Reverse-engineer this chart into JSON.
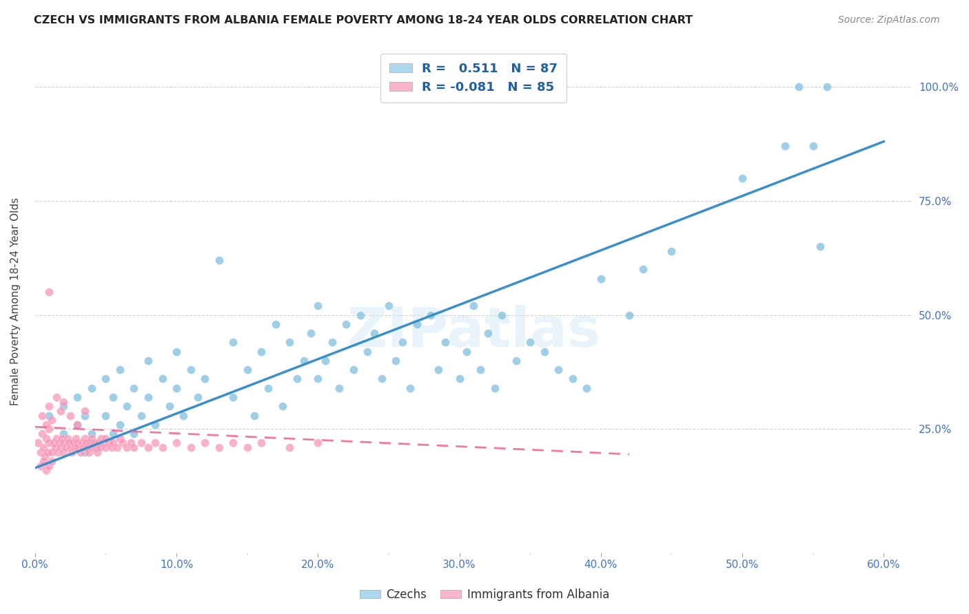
{
  "title": "CZECH VS IMMIGRANTS FROM ALBANIA FEMALE POVERTY AMONG 18-24 YEAR OLDS CORRELATION CHART",
  "source": "Source: ZipAtlas.com",
  "ylabel": "Female Poverty Among 18-24 Year Olds",
  "xlim": [
    0.0,
    0.62
  ],
  "ylim": [
    -0.02,
    1.08
  ],
  "xtick_labels": [
    "0.0%",
    "",
    "10.0%",
    "",
    "20.0%",
    "",
    "30.0%",
    "",
    "40.0%",
    "",
    "50.0%",
    "",
    "60.0%"
  ],
  "xtick_values": [
    0.0,
    0.05,
    0.1,
    0.15,
    0.2,
    0.25,
    0.3,
    0.35,
    0.4,
    0.45,
    0.5,
    0.55,
    0.6
  ],
  "ytick_labels": [
    "25.0%",
    "50.0%",
    "75.0%",
    "100.0%"
  ],
  "ytick_values": [
    0.25,
    0.5,
    0.75,
    1.0
  ],
  "blue_color": "#7fbfdf",
  "pink_color": "#f896b8",
  "blue_line_color": "#3a8fc8",
  "pink_line_color": "#f06090",
  "legend_blue_color": "#add8f0",
  "legend_pink_color": "#fbb4ce",
  "R_blue": 0.511,
  "N_blue": 87,
  "R_pink": -0.081,
  "N_pink": 85,
  "watermark_text": "ZIPatlas",
  "blue_trend_x": [
    0.0,
    0.6
  ],
  "blue_trend_y": [
    0.165,
    0.88
  ],
  "pink_trend_x": [
    0.0,
    0.42
  ],
  "pink_trend_y": [
    0.255,
    0.195
  ],
  "blue_scatter_x": [
    0.01,
    0.02,
    0.02,
    0.025,
    0.03,
    0.03,
    0.035,
    0.035,
    0.04,
    0.04,
    0.045,
    0.05,
    0.05,
    0.055,
    0.055,
    0.06,
    0.06,
    0.065,
    0.07,
    0.07,
    0.075,
    0.08,
    0.08,
    0.085,
    0.09,
    0.095,
    0.1,
    0.1,
    0.105,
    0.11,
    0.115,
    0.12,
    0.13,
    0.14,
    0.14,
    0.15,
    0.155,
    0.16,
    0.165,
    0.17,
    0.175,
    0.18,
    0.185,
    0.19,
    0.195,
    0.2,
    0.2,
    0.205,
    0.21,
    0.215,
    0.22,
    0.225,
    0.23,
    0.235,
    0.24,
    0.245,
    0.25,
    0.255,
    0.26,
    0.265,
    0.27,
    0.28,
    0.285,
    0.29,
    0.3,
    0.305,
    0.31,
    0.315,
    0.32,
    0.325,
    0.33,
    0.34,
    0.35,
    0.36,
    0.37,
    0.38,
    0.39,
    0.4,
    0.42,
    0.43,
    0.45,
    0.5,
    0.53,
    0.54,
    0.55,
    0.555,
    0.56
  ],
  "blue_scatter_y": [
    0.28,
    0.24,
    0.3,
    0.22,
    0.26,
    0.32,
    0.2,
    0.28,
    0.24,
    0.34,
    0.22,
    0.28,
    0.36,
    0.24,
    0.32,
    0.26,
    0.38,
    0.3,
    0.24,
    0.34,
    0.28,
    0.32,
    0.4,
    0.26,
    0.36,
    0.3,
    0.34,
    0.42,
    0.28,
    0.38,
    0.32,
    0.36,
    0.62,
    0.32,
    0.44,
    0.38,
    0.28,
    0.42,
    0.34,
    0.48,
    0.3,
    0.44,
    0.36,
    0.4,
    0.46,
    0.36,
    0.52,
    0.4,
    0.44,
    0.34,
    0.48,
    0.38,
    0.5,
    0.42,
    0.46,
    0.36,
    0.52,
    0.4,
    0.44,
    0.34,
    0.48,
    0.5,
    0.38,
    0.44,
    0.36,
    0.42,
    0.52,
    0.38,
    0.46,
    0.34,
    0.5,
    0.4,
    0.44,
    0.42,
    0.38,
    0.36,
    0.34,
    0.58,
    0.5,
    0.6,
    0.64,
    0.8,
    0.87,
    1.0,
    0.87,
    0.65,
    1.0
  ],
  "pink_scatter_x": [
    0.002,
    0.004,
    0.005,
    0.006,
    0.007,
    0.008,
    0.009,
    0.01,
    0.01,
    0.012,
    0.013,
    0.014,
    0.015,
    0.016,
    0.017,
    0.018,
    0.019,
    0.02,
    0.02,
    0.022,
    0.023,
    0.024,
    0.025,
    0.026,
    0.027,
    0.028,
    0.029,
    0.03,
    0.03,
    0.032,
    0.033,
    0.034,
    0.035,
    0.036,
    0.037,
    0.038,
    0.039,
    0.04,
    0.04,
    0.042,
    0.043,
    0.044,
    0.045,
    0.046,
    0.047,
    0.048,
    0.05,
    0.05,
    0.052,
    0.054,
    0.055,
    0.058,
    0.06,
    0.062,
    0.065,
    0.068,
    0.07,
    0.075,
    0.08,
    0.085,
    0.09,
    0.1,
    0.11,
    0.12,
    0.13,
    0.14,
    0.15,
    0.16,
    0.18,
    0.2,
    0.005,
    0.008,
    0.01,
    0.012,
    0.015,
    0.018,
    0.02,
    0.025,
    0.03,
    0.035,
    0.004,
    0.006,
    0.008,
    0.01,
    0.012
  ],
  "pink_scatter_y": [
    0.22,
    0.2,
    0.24,
    0.21,
    0.19,
    0.23,
    0.2,
    0.22,
    0.25,
    0.2,
    0.22,
    0.21,
    0.23,
    0.2,
    0.22,
    0.21,
    0.23,
    0.2,
    0.22,
    0.21,
    0.23,
    0.22,
    0.21,
    0.2,
    0.22,
    0.21,
    0.23,
    0.22,
    0.21,
    0.2,
    0.22,
    0.21,
    0.23,
    0.22,
    0.21,
    0.2,
    0.22,
    0.21,
    0.23,
    0.22,
    0.21,
    0.2,
    0.22,
    0.21,
    0.23,
    0.22,
    0.21,
    0.23,
    0.22,
    0.21,
    0.22,
    0.21,
    0.23,
    0.22,
    0.21,
    0.22,
    0.21,
    0.22,
    0.21,
    0.22,
    0.21,
    0.22,
    0.21,
    0.22,
    0.21,
    0.22,
    0.21,
    0.22,
    0.21,
    0.22,
    0.28,
    0.26,
    0.3,
    0.27,
    0.32,
    0.29,
    0.31,
    0.28,
    0.26,
    0.29,
    0.17,
    0.18,
    0.16,
    0.17,
    0.18
  ],
  "pink_outlier_x": [
    0.01
  ],
  "pink_outlier_y": [
    0.55
  ]
}
